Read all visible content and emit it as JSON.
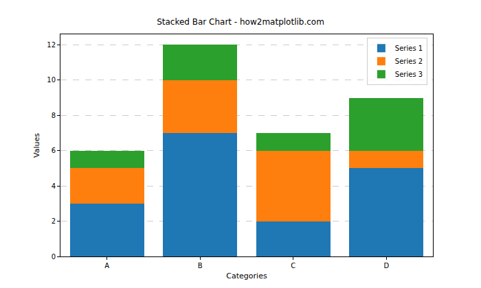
{
  "chart_data": {
    "type": "bar",
    "title": "Stacked Bar Chart - how2matplotlib.com",
    "x_label": "Categories",
    "y_label": "Values",
    "categories": [
      "A",
      "B",
      "C",
      "D"
    ],
    "series": [
      {
        "name": "Series 1",
        "color": "#1f77b4",
        "values": [
          3,
          7,
          2,
          5
        ]
      },
      {
        "name": "Series 2",
        "color": "#ff7f0e",
        "values": [
          2,
          3,
          4,
          1
        ]
      },
      {
        "name": "Series 3",
        "color": "#2ca02c",
        "values": [
          1,
          2,
          1,
          3
        ]
      }
    ],
    "stacked": true,
    "ylim": [
      0,
      12.6
    ],
    "yticks": [
      0,
      2,
      4,
      6,
      8,
      10,
      12
    ],
    "grid": true,
    "legend": "upper right"
  }
}
